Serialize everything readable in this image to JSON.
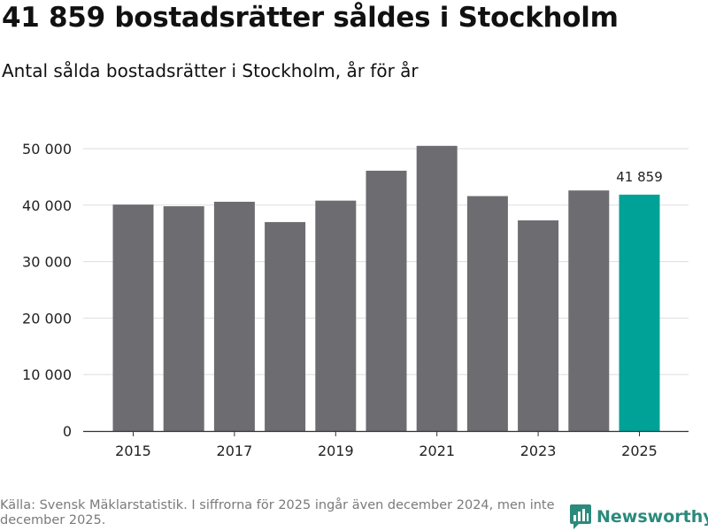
{
  "title": "41 859 bostadsrätter såldes i Stockholm",
  "subtitle": "Antal sålda bostadsrätter i Stockholm, år för år",
  "source": "Källa: Svensk Mäklarstatistik. I siffrorna för 2025 ingår även december 2024, men inte december 2025.",
  "brand": {
    "name": "Newsworthy",
    "color": "#2b8a7c"
  },
  "colors": {
    "bar": "#6d6c71",
    "highlight": "#00a297",
    "grid": "#dddddd",
    "axis": "#333333"
  },
  "chart_data": {
    "type": "bar",
    "title": "41 859 bostadsrätter såldes i Stockholm",
    "subtitle": "Antal sålda bostadsrätter i Stockholm, år för år",
    "categories": [
      "2015",
      "2016",
      "2017",
      "2018",
      "2019",
      "2020",
      "2021",
      "2022",
      "2023",
      "2024",
      "2025"
    ],
    "values": [
      40100,
      39800,
      40600,
      37000,
      40800,
      46100,
      50500,
      41600,
      37300,
      42600,
      41859
    ],
    "highlight_index": 10,
    "data_labels": [
      {
        "index": 10,
        "text": "41 859"
      }
    ],
    "x_tick_labels": [
      "2015",
      "2017",
      "2019",
      "2021",
      "2023",
      "2025"
    ],
    "y_ticks": [
      0,
      10000,
      20000,
      30000,
      40000,
      50000
    ],
    "y_tick_labels": [
      "0",
      "10 000",
      "20 000",
      "30 000",
      "40 000",
      "50 000"
    ],
    "ylim": [
      0,
      50000
    ],
    "xlabel": "",
    "ylabel": "",
    "grid": true,
    "legend": false
  }
}
